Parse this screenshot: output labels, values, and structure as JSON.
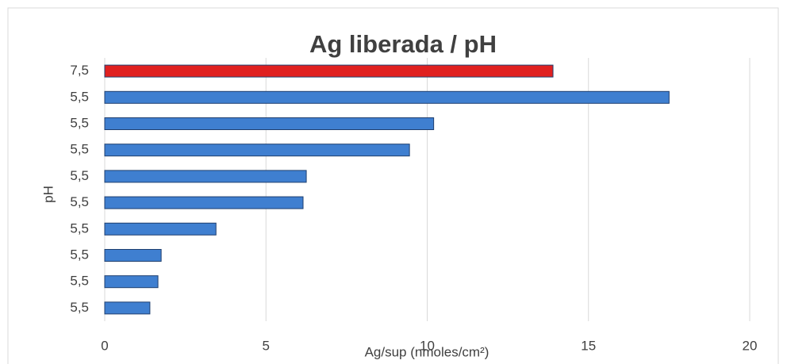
{
  "chart_data": {
    "type": "bar",
    "orientation": "horizontal",
    "title": "Ag liberada / pH",
    "xlabel": "Ag/sup (nmoles/cm²)",
    "ylabel": "pH",
    "categories": [
      "7,5",
      "5,5",
      "5,5",
      "5,5",
      "5,5",
      "5,5",
      "5,5",
      "5,5",
      "5,5",
      "5,5"
    ],
    "values": [
      13.9,
      17.5,
      10.2,
      9.45,
      6.25,
      6.15,
      3.45,
      1.75,
      1.65,
      1.4
    ],
    "colors": [
      "#e02020",
      "#3f7fd0",
      "#3f7fd0",
      "#3f7fd0",
      "#3f7fd0",
      "#3f7fd0",
      "#3f7fd0",
      "#3f7fd0",
      "#3f7fd0",
      "#3f7fd0"
    ],
    "xlim": [
      0,
      20
    ],
    "xticks": [
      0,
      5,
      10,
      15,
      20
    ],
    "grid": true
  }
}
